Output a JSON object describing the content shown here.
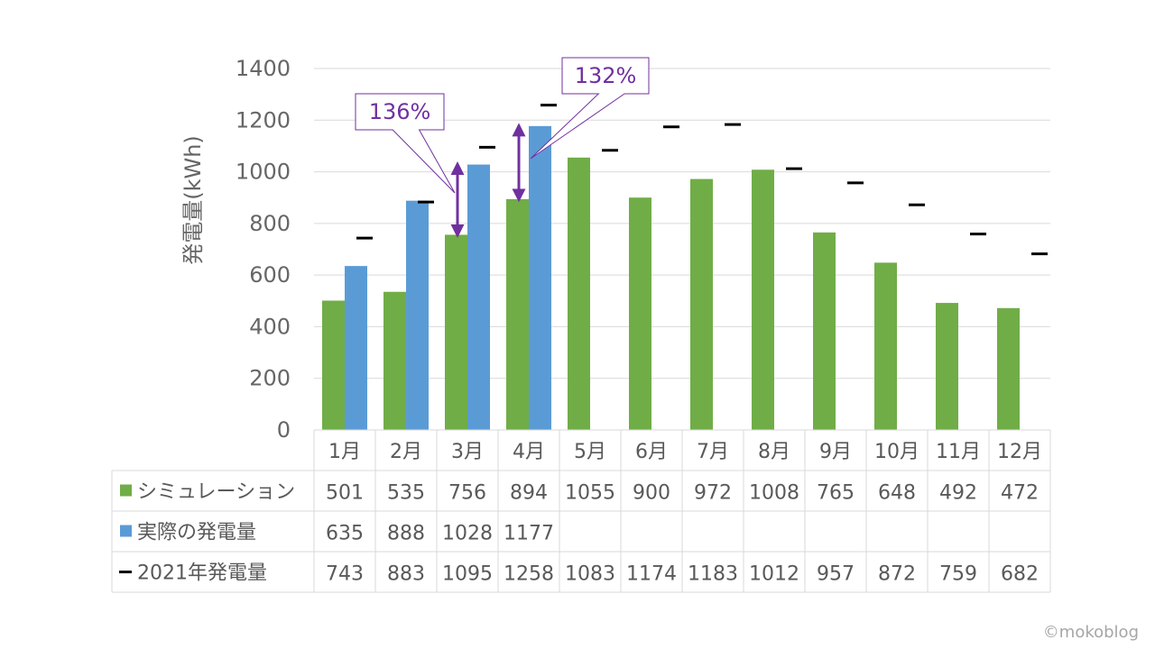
{
  "chart_data": {
    "type": "bar",
    "ylabel": "発電量(kWh)",
    "ylim": [
      0,
      1400
    ],
    "yticks": [
      0,
      200,
      400,
      600,
      800,
      1000,
      1200,
      1400
    ],
    "grid": true,
    "categories": [
      "1月",
      "2月",
      "3月",
      "4月",
      "5月",
      "6月",
      "7月",
      "8月",
      "9月",
      "10月",
      "11月",
      "12月"
    ],
    "series": [
      {
        "name": "シミュレーション",
        "type": "bar",
        "color": "#70ad47",
        "values": [
          501,
          535,
          756,
          894,
          1055,
          900,
          972,
          1008,
          765,
          648,
          492,
          472
        ]
      },
      {
        "name": "実際の発電量",
        "type": "bar",
        "color": "#5b9bd5",
        "values": [
          635,
          888,
          1028,
          1177,
          null,
          null,
          null,
          null,
          null,
          null,
          null,
          null
        ]
      },
      {
        "name": "2021年発電量",
        "type": "marker",
        "color": "#000000",
        "values": [
          743,
          883,
          1095,
          1258,
          1083,
          1174,
          1183,
          1012,
          957,
          872,
          759,
          682
        ]
      }
    ],
    "annotations": [
      {
        "text": "136%",
        "category": "3月",
        "from": 756,
        "to": 1028,
        "color": "#7030a0"
      },
      {
        "text": "132%",
        "category": "4月",
        "from": 894,
        "to": 1177,
        "color": "#7030a0"
      }
    ],
    "data_table": true
  },
  "watermark": "©mokoblog"
}
